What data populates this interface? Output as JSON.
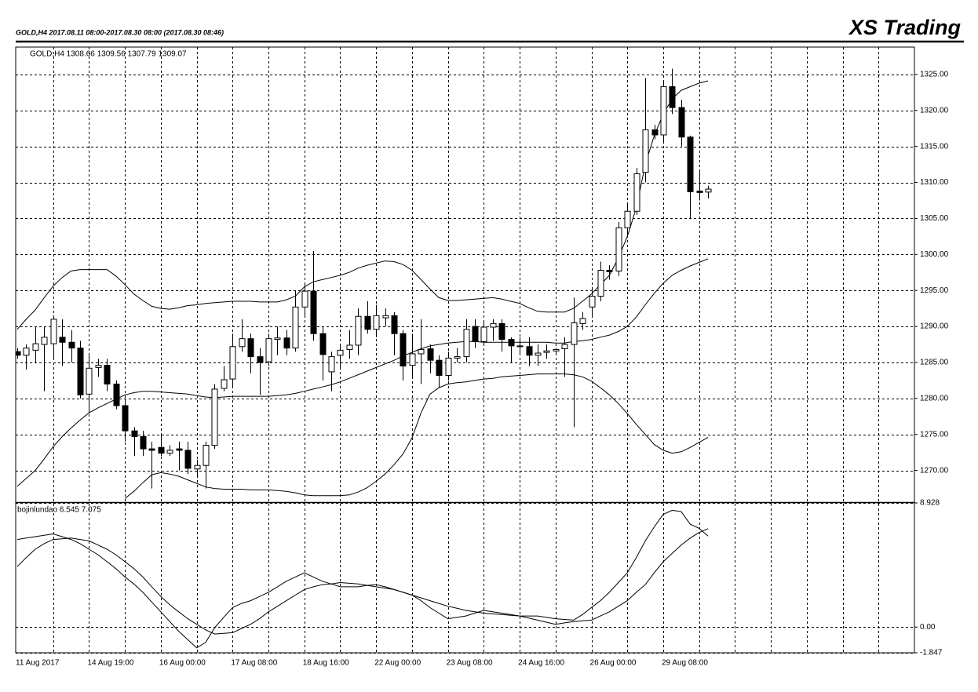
{
  "header": {
    "left": "GOLD,H4  2017.08.11 08:00-2017.08.30 08:00 (2017.08.30 08:46)",
    "right": "XS Trading"
  },
  "chart_data": [
    {
      "type": "candlestick",
      "label": "GOLD,H4  1308.66 1309.56 1307.79 1309.07",
      "open": [
        1286.5,
        1286,
        1286.7,
        1287.5,
        1287.6,
        1288.5,
        1287.8,
        1287,
        1280.6,
        1284.3,
        1284.6,
        1282,
        1279,
        1275.5,
        1274.7,
        1273,
        1273.2,
        1272.4,
        1273,
        1272.8,
        1270.2,
        1270.7,
        1273.5,
        1281.4,
        1282.7,
        1287.2,
        1288.3,
        1285.8,
        1285.1,
        1288.2,
        1288.4,
        1287,
        1292.7,
        1294.9,
        1289,
        1283.7,
        1286,
        1286.8,
        1287.4,
        1291.4,
        1289.6,
        1291.2,
        1291.5,
        1289,
        1284.6,
        1286.2,
        1286.9,
        1285.3,
        1283.2,
        1285.6,
        1285.8,
        1290,
        1287.9,
        1289.9,
        1290.4,
        1288.2,
        1287.3,
        1287.2,
        1286,
        1286.4,
        1286.6,
        1286.9,
        1287.5,
        1290.4,
        1292.7,
        1294.2,
        1297.8,
        1297.7,
        1303.7,
        1306,
        1311.4,
        1317.3,
        1316.6,
        1323.3,
        1320.4,
        1316.3,
        1308.8,
        1308.66
      ],
      "high": [
        1287,
        1287.5,
        1290,
        1290,
        1291.5,
        1291,
        1289.5,
        1288,
        1286,
        1285.5,
        1285.5,
        1282.5,
        1280,
        1276,
        1275.5,
        1274,
        1275,
        1273.5,
        1274,
        1274,
        1271.5,
        1274,
        1282,
        1284.5,
        1289,
        1291,
        1289,
        1287,
        1289,
        1290,
        1289.5,
        1295,
        1296,
        1300.5,
        1290,
        1286.5,
        1287.5,
        1289.5,
        1292.5,
        1293.5,
        1293,
        1292.5,
        1292,
        1289.5,
        1289,
        1291,
        1287.5,
        1286,
        1286.5,
        1287,
        1291,
        1291,
        1290.8,
        1291,
        1291,
        1288.5,
        1288.5,
        1288.5,
        1287.5,
        1287.5,
        1287,
        1288.5,
        1294,
        1292,
        1295.5,
        1299,
        1298.5,
        1304.5,
        1307,
        1312,
        1324.5,
        1318,
        1324,
        1325.8,
        1321.5,
        1316.5,
        1311.6,
        1309.56
      ],
      "low": [
        1285.5,
        1284,
        1285,
        1281,
        1285.5,
        1284.5,
        1285,
        1280,
        1278,
        1283,
        1281,
        1278.5,
        1274,
        1272,
        1272,
        1267.5,
        1272,
        1272,
        1270,
        1269.5,
        1269,
        1267.5,
        1273,
        1281,
        1281.5,
        1286.5,
        1283.5,
        1280.5,
        1284.5,
        1286,
        1286,
        1286.5,
        1291.5,
        1288,
        1282.5,
        1281,
        1284,
        1285.5,
        1286,
        1289,
        1288.5,
        1290,
        1286,
        1282.5,
        1283,
        1282,
        1283.5,
        1281.5,
        1282.5,
        1285,
        1285,
        1287,
        1287.3,
        1288,
        1286.5,
        1285,
        1286,
        1284.5,
        1284.5,
        1285.5,
        1286,
        1283,
        1276,
        1289.5,
        1291.5,
        1293.5,
        1296.5,
        1297,
        1302.5,
        1305.5,
        1310,
        1316,
        1315.5,
        1319.5,
        1315,
        1305,
        1307.5,
        1307.79
      ],
      "close": [
        1286,
        1287,
        1287.6,
        1288.5,
        1291,
        1287.8,
        1287,
        1280.5,
        1284.2,
        1284.6,
        1282,
        1279,
        1275.5,
        1274.7,
        1273,
        1272.8,
        1272.4,
        1272.8,
        1272.8,
        1270.3,
        1270.7,
        1273.5,
        1281.3,
        1282.6,
        1287.2,
        1288.3,
        1285.8,
        1285,
        1288.3,
        1288.4,
        1287,
        1292.7,
        1294.9,
        1289,
        1286.1,
        1285.8,
        1286.7,
        1287.4,
        1291.4,
        1289.6,
        1291.5,
        1291.5,
        1289,
        1284.5,
        1286.2,
        1286.8,
        1285.3,
        1283.2,
        1285.6,
        1285.8,
        1289.6,
        1287.9,
        1289.9,
        1290.4,
        1288.2,
        1287.3,
        1287.2,
        1286,
        1286.3,
        1286.6,
        1286.8,
        1287.5,
        1290.5,
        1291.1,
        1294.2,
        1297.8,
        1297.6,
        1303.7,
        1306,
        1311.2,
        1317.3,
        1316.6,
        1323.3,
        1320.4,
        1316.3,
        1308.7,
        1308.6,
        1309.07
      ],
      "series": [
        {
          "color": "#000000",
          "values": [
            1289.6,
            1291,
            1292.3,
            1294,
            1295.6,
            1296.8,
            1297.7,
            1297.9,
            1297.9,
            1297.9,
            1297.9,
            1297,
            1295.8,
            1294.5,
            1293.6,
            1292.8,
            1292.5,
            1292.4,
            1292.6,
            1292.9,
            1293,
            1293.2,
            1293.3,
            1293.4,
            1293.5,
            1293.5,
            1293.5,
            1293.4,
            1293.4,
            1293.4,
            1293.7,
            1294.2,
            1295.5,
            1296.2,
            1296.5,
            1296.8,
            1297.1,
            1297.5,
            1298.1,
            1298.5,
            1298.8,
            1299.1,
            1299,
            1298.6,
            1297.8,
            1296.5,
            1295.2,
            1294,
            1293.6,
            1293.6,
            1293.7,
            1293.8,
            1293.9,
            1294,
            1293.8,
            1293.5,
            1293.2,
            1292.6,
            1292.1,
            1292,
            1292,
            1292,
            1292.5,
            1293.5,
            1294.5,
            1295.8,
            1297.1,
            1299.5,
            1302.5,
            1306.5,
            1312.5,
            1316.5,
            1319.5,
            1321.6,
            1322.8,
            1323.3,
            1323.8,
            1324.1
          ]
        },
        {
          "color": "#000000",
          "values": [
            1267.8,
            1268.9,
            1270,
            1271.6,
            1273.3,
            1274.7,
            1275.9,
            1277,
            1278,
            1278.7,
            1279.3,
            1279.9,
            1280.5,
            1280.8,
            1281,
            1281,
            1280.9,
            1280.8,
            1280.7,
            1280.6,
            1280.4,
            1280.2,
            1280.1,
            1280.2,
            1280.3,
            1280.3,
            1280.3,
            1280.3,
            1280.3,
            1280.4,
            1280.5,
            1280.7,
            1281,
            1281.3,
            1281.6,
            1281.9,
            1282.3,
            1282.8,
            1283.3,
            1283.8,
            1284.3,
            1284.8,
            1285.3,
            1285.9,
            1286.4,
            1286.9,
            1287.3,
            1287.5,
            1287.7,
            1287.8,
            1287.9,
            1287.9,
            1287.8,
            1287.8,
            1287.8,
            1287.8,
            1287.8,
            1287.8,
            1287.8,
            1287.8,
            1287.7,
            1287.7,
            1287.9,
            1288,
            1288.2,
            1288.5,
            1288.8,
            1289.3,
            1290,
            1291.3,
            1293,
            1294.6,
            1296,
            1297.1,
            1297.8,
            1298.4,
            1298.9,
            1299.4
          ]
        },
        {
          "color": "#000000",
          "values": [
            null,
            null,
            null,
            null,
            null,
            null,
            null,
            null,
            null,
            null,
            null,
            null,
            1266.1,
            1267.1,
            1268.3,
            1269.4,
            1269.7,
            1269.5,
            1269.2,
            1268.7,
            1268.2,
            1267.7,
            1267.5,
            1267.4,
            1267.4,
            1267.4,
            1267.3,
            1267.3,
            1267.3,
            1267.2,
            1267.1,
            1266.9,
            1266.6,
            1266.5,
            1266.5,
            1266.5,
            1266.5,
            1266.6,
            1267,
            1267.6,
            1268.5,
            1269.5,
            1270.8,
            1272.3,
            1274.5,
            1278,
            1280.6,
            1281.5,
            1282,
            1282.2,
            1282.3,
            1282.5,
            1282.7,
            1282.8,
            1283,
            1283.1,
            1283.2,
            1283.3,
            1283.4,
            1283.4,
            1283.4,
            1283.4,
            1283.3,
            1283,
            1282.4,
            1281.5,
            1280.5,
            1279.3,
            1277.9,
            1276.4,
            1275,
            1273.6,
            1272.8,
            1272.4,
            1272.6,
            1273.2,
            1273.9,
            1274.6
          ]
        }
      ],
      "up_color": "#ffffff",
      "down_color": "#000000",
      "ylim": [
        1265.6,
        1328.8
      ],
      "yticks": [
        {
          "value": 1270,
          "label": "1270.00"
        },
        {
          "value": 1275,
          "label": "1275.00"
        },
        {
          "value": 1280,
          "label": "1280.00"
        },
        {
          "value": 1285,
          "label": "1285.00"
        },
        {
          "value": 1290,
          "label": "1290.00"
        },
        {
          "value": 1295,
          "label": "1295.00"
        },
        {
          "value": 1300,
          "label": "1300.00"
        },
        {
          "value": 1305,
          "label": "1305.00"
        },
        {
          "value": 1310,
          "label": "1310.00"
        },
        {
          "value": 1315,
          "label": "1315.00"
        },
        {
          "value": 1320,
          "label": "1320.00"
        },
        {
          "value": 1325,
          "label": "1325.00"
        }
      ],
      "grid": true
    },
    {
      "type": "line",
      "label": "bojinlundao 6.545 7.075",
      "categories": [
        "11 Aug 2017",
        null,
        null,
        null,
        null,
        null,
        null,
        null,
        "14 Aug 19:00",
        null,
        null,
        null,
        null,
        null,
        null,
        null,
        "16 Aug 00:00",
        null,
        null,
        null,
        null,
        null,
        null,
        null,
        "17 Aug 08:00",
        null,
        null,
        null,
        null,
        null,
        null,
        null,
        "18 Aug 16:00",
        null,
        null,
        null,
        null,
        null,
        null,
        null,
        "22 Aug 00:00",
        null,
        null,
        null,
        null,
        null,
        null,
        null,
        "23 Aug 08:00",
        null,
        null,
        null,
        null,
        null,
        null,
        null,
        "24 Aug 16:00",
        null,
        null,
        null,
        null,
        null,
        null,
        null,
        "26 Aug 00:00",
        null,
        null,
        null,
        null,
        null,
        null,
        null,
        "29 Aug 08:00",
        null,
        null,
        null,
        null,
        null
      ],
      "series": [
        {
          "color": "#000000",
          "values": [
            6.3,
            6.4,
            6.5,
            6.6,
            6.7,
            6.5,
            6.3,
            6.0,
            5.6,
            5.2,
            4.7,
            4.2,
            3.6,
            3.1,
            2.5,
            1.8,
            1.1,
            0.4,
            -0.3,
            -0.9,
            -1.5,
            -1.1,
            -0.05,
            0.7,
            1.4,
            1.7,
            1.9,
            2.2,
            2.5,
            2.9,
            3.3,
            3.6,
            3.9,
            3.6,
            3.3,
            3.1,
            2.9,
            2.9,
            2.9,
            3.0,
            3.05,
            2.9,
            2.7,
            2.5,
            2.3,
            1.9,
            1.4,
            1.0,
            0.6,
            0.7,
            0.8,
            1.0,
            1.2,
            1.1,
            1.0,
            0.9,
            0.8,
            0.8,
            0.8,
            0.7,
            0.6,
            0.55,
            0.5,
            0.9,
            1.4,
            1.9,
            2.5,
            3.2,
            3.9,
            5.0,
            6.2,
            7.2,
            8.1,
            8.4,
            8.3,
            7.4,
            7.1,
            6.545
          ]
        },
        {
          "color": "#000000",
          "values": [
            4.35,
            5.0,
            5.6,
            6.0,
            6.3,
            6.35,
            6.4,
            6.3,
            6.2,
            5.9,
            5.6,
            5.2,
            4.7,
            4.2,
            3.6,
            2.9,
            2.2,
            1.6,
            1.1,
            0.6,
            0.2,
            -0.2,
            -0.5,
            -0.45,
            -0.4,
            -0.1,
            0.2,
            0.6,
            1.1,
            1.5,
            1.9,
            2.3,
            2.7,
            2.9,
            3.05,
            3.1,
            3.2,
            3.15,
            3.1,
            3.0,
            2.9,
            2.8,
            2.7,
            2.5,
            2.3,
            2.1,
            1.9,
            1.7,
            1.5,
            1.35,
            1.2,
            1.1,
            1.0,
            0.95,
            0.9,
            0.85,
            0.8,
            0.65,
            0.5,
            0.35,
            0.2,
            0.3,
            0.4,
            0.45,
            0.5,
            0.8,
            1.1,
            1.5,
            1.9,
            2.5,
            3.05,
            3.9,
            4.7,
            5.3,
            5.9,
            6.4,
            6.8,
            7.075
          ]
        }
      ],
      "ylim": [
        -1.847,
        8.928
      ],
      "yticks": [
        -1.847,
        {
          "value": 0,
          "label": "0.00"
        },
        8.928
      ],
      "grid": true
    }
  ]
}
